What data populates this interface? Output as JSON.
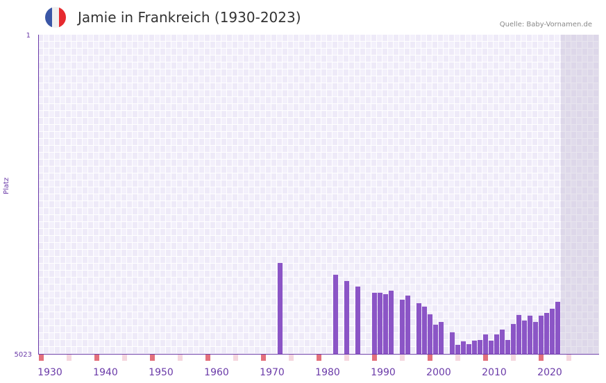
{
  "header": {
    "title": "Jamie in Frankreich (1930-2023)",
    "source": "Quelle: Baby-Vornamen.de",
    "flag_icon": "france-flag-icon"
  },
  "colors": {
    "bar": "#8b55c6",
    "axis": "#6a3aa8",
    "decade_marker": "#e3707c",
    "half_decade_marker": "#f5d7df",
    "flag": [
      "#3a56a6",
      "#f0f0f0",
      "#e62a2f"
    ]
  },
  "chart_data": {
    "type": "bar",
    "title": "Jamie in Frankreich (1930-2023)",
    "xlabel": "",
    "ylabel": "Platz",
    "xlim": [
      1930,
      2028
    ],
    "ylim": [
      5023,
      1
    ],
    "y_inverted": true,
    "yticks": [
      "1",
      "5023"
    ],
    "xticks": [
      "1930",
      "1940",
      "1950",
      "1960",
      "1970",
      "1980",
      "1990",
      "2000",
      "2010",
      "2020"
    ],
    "grid": true,
    "x": [
      1973,
      1983,
      1985,
      1987,
      1990,
      1991,
      1992,
      1993,
      1995,
      1996,
      1998,
      1999,
      2000,
      2001,
      2002,
      2004,
      2005,
      2006,
      2007,
      2008,
      2009,
      2010,
      2011,
      2012,
      2013,
      2014,
      2015,
      2016,
      2017,
      2018,
      2019,
      2020,
      2021,
      2022,
      2023
    ],
    "values": [
      3593,
      3778,
      3877,
      3964,
      4062,
      4062,
      4084,
      4029,
      4171,
      4106,
      4226,
      4280,
      4401,
      4564,
      4521,
      4684,
      4881,
      4826,
      4870,
      4815,
      4804,
      4717,
      4815,
      4717,
      4641,
      4804,
      4553,
      4411,
      4499,
      4422,
      4521,
      4422,
      4379,
      4313,
      4204
    ]
  }
}
